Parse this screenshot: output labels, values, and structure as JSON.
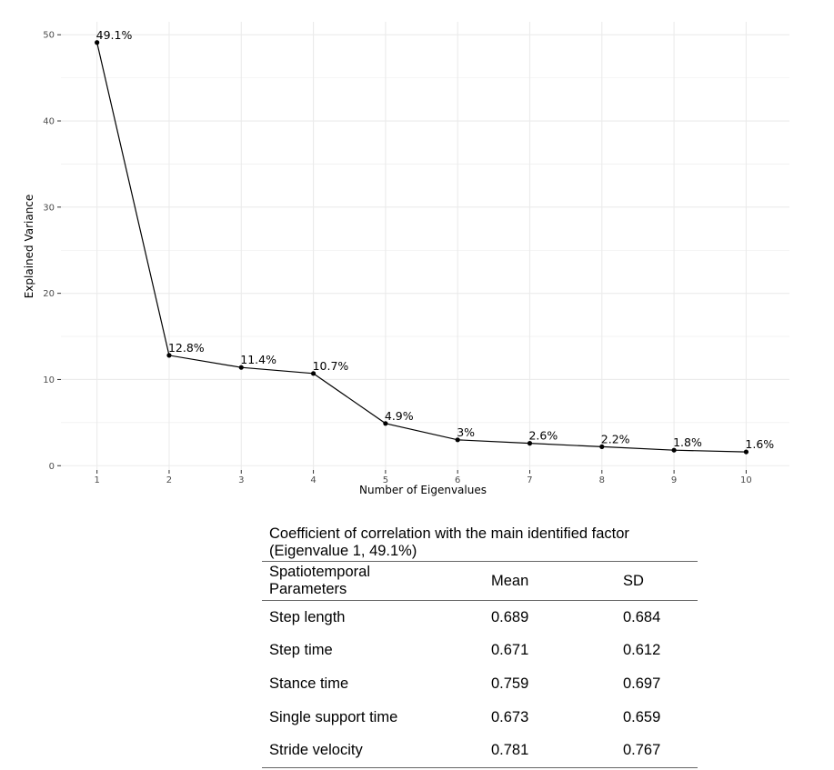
{
  "chart_data": {
    "type": "line",
    "xlabel": "Number of Eigenvalues",
    "ylabel": "Explained Variance",
    "x": [
      1,
      2,
      3,
      4,
      5,
      6,
      7,
      8,
      9,
      10
    ],
    "values": [
      49.1,
      12.8,
      11.4,
      10.7,
      4.9,
      3.0,
      2.6,
      2.2,
      1.8,
      1.6
    ],
    "point_labels": [
      "49.1%",
      "12.8%",
      "11.4%",
      "10.7%",
      "4.9%",
      "3%",
      "2.6%",
      "2.2%",
      "1.8%",
      "1.6%"
    ],
    "x_ticks": [
      "1",
      "2",
      "3",
      "4",
      "5",
      "6",
      "7",
      "8",
      "9",
      "10"
    ],
    "y_ticks": [
      "0",
      "10",
      "20",
      "30",
      "40",
      "50"
    ],
    "y_tick_values": [
      0,
      10,
      20,
      30,
      40,
      50
    ],
    "xlim": [
      0.5,
      10.6
    ],
    "ylim": [
      -0.5,
      51.5
    ],
    "grid": true,
    "line_color": "#000000",
    "grid_color": "#ebebeb"
  },
  "table": {
    "caption_line1": "Coefficient of correlation with the main identified factor",
    "caption_line2": "(Eigenvalue 1, 49.1%)",
    "headers": {
      "param_line1": "Spatiotemporal",
      "param_line2": "Parameters",
      "mean": "Mean",
      "sd": "SD"
    },
    "rows": [
      {
        "param": "Step length",
        "mean": "0.689",
        "sd": "0.684"
      },
      {
        "param": "Step time",
        "mean": "0.671",
        "sd": "0.612"
      },
      {
        "param": "Stance time",
        "mean": "0.759",
        "sd": "0.697"
      },
      {
        "param": "Single support time",
        "mean": "0.673",
        "sd": "0.659"
      },
      {
        "param": "Stride velocity",
        "mean": "0.781",
        "sd": "0.767"
      }
    ]
  }
}
